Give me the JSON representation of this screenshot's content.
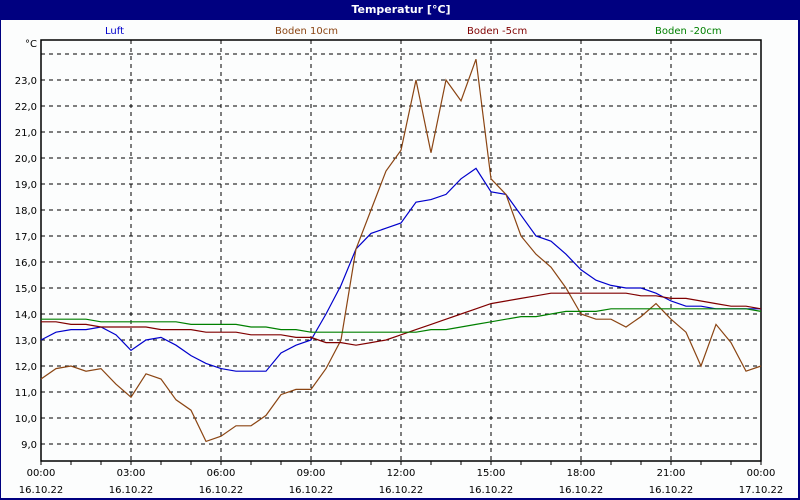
{
  "window": {
    "title": "Temperatur [°C]"
  },
  "colors": {
    "titlebar": "#000080",
    "luft": "#0000cc",
    "boden10": "#8b4513",
    "boden5": "#800000",
    "boden20": "#008000"
  },
  "chart_data": {
    "type": "line",
    "title": "Temperatur [°C]",
    "xlabel": "",
    "ylabel": "°C",
    "ylim": [
      8.3,
      24.6
    ],
    "yticks": [
      "9,0",
      "10,0",
      "11,0",
      "12,0",
      "13,0",
      "14,0",
      "15,0",
      "16,0",
      "17,0",
      "18,0",
      "19,0",
      "20,0",
      "21,0",
      "22,0",
      "23,0"
    ],
    "xticks": [
      {
        "time": "00:00",
        "date": "16.10.22"
      },
      {
        "time": "03:00",
        "date": "16.10.22"
      },
      {
        "time": "06:00",
        "date": "16.10.22"
      },
      {
        "time": "09:00",
        "date": "16.10.22"
      },
      {
        "time": "12:00",
        "date": "16.10.22"
      },
      {
        "time": "15:00",
        "date": "16.10.22"
      },
      {
        "time": "18:00",
        "date": "16.10.22"
      },
      {
        "time": "21:00",
        "date": "16.10.22"
      },
      {
        "time": "00:00",
        "date": "17.10.22"
      }
    ],
    "grid": true,
    "legend_position": "top",
    "x_hours": [
      0,
      0.5,
      1,
      1.5,
      2,
      2.5,
      3,
      3.5,
      4,
      4.5,
      5,
      5.5,
      6,
      6.5,
      7,
      7.5,
      8,
      8.5,
      9,
      9.5,
      10,
      10.5,
      11,
      11.5,
      12,
      12.5,
      13,
      13.5,
      14,
      14.5,
      15,
      15.5,
      16,
      16.5,
      17,
      17.5,
      18,
      18.5,
      19,
      19.5,
      20,
      20.5,
      21,
      21.5,
      22,
      22.5,
      23,
      23.5,
      24
    ],
    "series": [
      {
        "name": "Luft",
        "color": "#0000cc",
        "values": [
          13.0,
          13.3,
          13.4,
          13.4,
          13.5,
          13.2,
          12.6,
          13.0,
          13.1,
          12.8,
          12.4,
          12.1,
          11.9,
          11.8,
          11.8,
          11.8,
          12.5,
          12.8,
          13.0,
          14.0,
          15.1,
          16.5,
          17.1,
          17.3,
          17.5,
          18.3,
          18.4,
          18.6,
          19.2,
          19.6,
          18.7,
          18.6,
          17.8,
          17.0,
          16.8,
          16.3,
          15.7,
          15.3,
          15.1,
          15.0,
          15.0,
          14.8,
          14.5,
          14.3,
          14.3,
          14.2,
          14.2,
          14.2,
          14.2
        ]
      },
      {
        "name": "Boden 10cm",
        "color": "#8b4513",
        "values": [
          11.5,
          11.9,
          12.0,
          11.8,
          11.9,
          11.3,
          10.8,
          11.7,
          11.5,
          10.7,
          10.3,
          9.1,
          9.3,
          9.7,
          9.7,
          10.1,
          10.9,
          11.1,
          11.1,
          11.9,
          13.0,
          16.5,
          18.0,
          19.5,
          20.3,
          23.0,
          20.2,
          23.0,
          22.2,
          23.8,
          19.2,
          18.6,
          17.0,
          16.3,
          15.8,
          15.0,
          14.0,
          13.8,
          13.8,
          13.5,
          13.9,
          14.4,
          13.8,
          13.3,
          12.0,
          13.6,
          12.9,
          11.8,
          12.0
        ]
      },
      {
        "name": "Boden -5cm",
        "color": "#800000",
        "values": [
          13.7,
          13.7,
          13.6,
          13.6,
          13.5,
          13.5,
          13.5,
          13.5,
          13.4,
          13.4,
          13.4,
          13.3,
          13.3,
          13.3,
          13.2,
          13.2,
          13.2,
          13.1,
          13.1,
          12.9,
          12.9,
          12.8,
          12.9,
          13.0,
          13.2,
          13.4,
          13.6,
          13.8,
          14.0,
          14.2,
          14.4,
          14.5,
          14.6,
          14.7,
          14.8,
          14.8,
          14.8,
          14.8,
          14.8,
          14.8,
          14.7,
          14.7,
          14.6,
          14.6,
          14.5,
          14.4,
          14.3,
          14.3,
          14.2
        ]
      },
      {
        "name": "Boden -20cm",
        "color": "#008000",
        "values": [
          13.8,
          13.8,
          13.8,
          13.8,
          13.7,
          13.7,
          13.7,
          13.7,
          13.7,
          13.7,
          13.6,
          13.6,
          13.6,
          13.6,
          13.5,
          13.5,
          13.4,
          13.4,
          13.3,
          13.3,
          13.3,
          13.3,
          13.3,
          13.3,
          13.3,
          13.3,
          13.4,
          13.4,
          13.5,
          13.6,
          13.7,
          13.8,
          13.9,
          13.9,
          14.0,
          14.1,
          14.1,
          14.1,
          14.2,
          14.2,
          14.2,
          14.2,
          14.2,
          14.2,
          14.2,
          14.2,
          14.2,
          14.2,
          14.1
        ]
      }
    ]
  }
}
